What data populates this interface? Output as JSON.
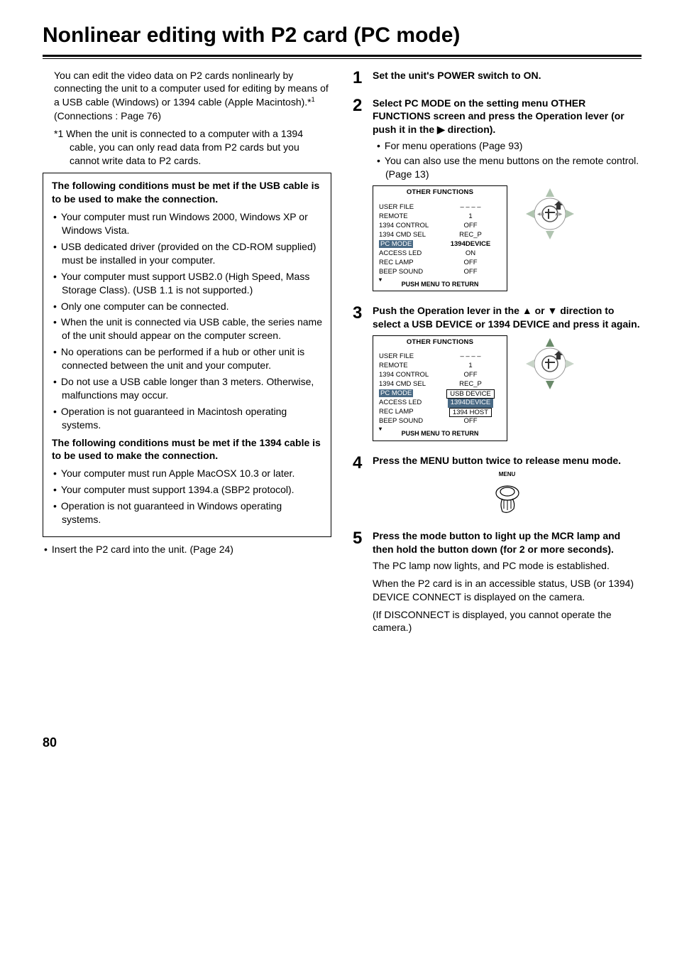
{
  "title": "Nonlinear editing with P2 card (PC mode)",
  "pageNumber": "80",
  "left": {
    "intro": "You can edit the video data on P2 cards nonlinearly by connecting the unit to a computer used for editing by means of a USB cable (Windows) or 1394 cable (Apple Macintosh).*",
    "introSup": "1",
    "introTail": " (Connections : Page 76)",
    "note1": "*1 When the unit is connected to a computer with a 1394 cable, you can only read data from P2 cards but you cannot write data to P2 cards.",
    "usbHead": "The following conditions must be met if the USB cable is to be used to make the connection.",
    "usb": [
      "Your computer must run Windows 2000, Windows XP or Windows Vista.",
      "USB dedicated driver (provided on the CD-ROM supplied) must be installed in your computer.",
      "Your computer must support USB2.0 (High Speed, Mass Storage Class). (USB 1.1 is not supported.)",
      "Only one computer can be connected.",
      "When the unit is connected via USB cable, the series name of the unit should appear on the computer screen.",
      "No operations can be performed if a hub or other unit is connected between the unit and your computer.",
      "Do not use a USB cable longer than 3 meters. Otherwise, malfunctions may occur.",
      "Operation is not guaranteed in Macintosh operating systems."
    ],
    "fwHead": "The following conditions must be met if the 1394 cable is to be used to make the connection.",
    "fw": [
      "Your computer must run Apple MacOSX 10.3 or later.",
      "Your computer must support 1394.a (SBP2 protocol).",
      "Operation is not guaranteed in Windows operating systems."
    ],
    "insert": "Insert the P2 card into the unit. (Page 24)"
  },
  "steps": {
    "s1": {
      "num": "1",
      "head": "Set the unit's POWER switch to ON."
    },
    "s2": {
      "num": "2",
      "head": "Select PC MODE on the setting menu OTHER FUNCTIONS screen and press the Operation lever (or push it in the ▶ direction).",
      "b1": "For menu operations (Page 93)",
      "b2": "You can also use the menu buttons on the remote control. (Page 13)"
    },
    "s3": {
      "num": "3",
      "head": "Push the Operation lever in the ▲ or ▼ direction to select a USB DEVICE or 1394 DEVICE and press it again."
    },
    "s4": {
      "num": "4",
      "head": "Press the MENU button twice to release menu mode.",
      "btnLabel": "MENU"
    },
    "s5": {
      "num": "5",
      "head": "Press the mode button to light up the MCR lamp and then hold the button down (for 2 or more seconds).",
      "p1": "The PC lamp now lights, and PC mode is established.",
      "p2": "When the P2 card is in an accessible status, USB (or 1394) DEVICE CONNECT is displayed on the camera.",
      "p3": "(If DISCONNECT is displayed, you cannot operate the camera.)"
    }
  },
  "menu": {
    "title": "OTHER FUNCTIONS",
    "footer": "PUSH   MENU TO RETURN",
    "rows": [
      {
        "label": "USER FILE",
        "val": "– – – –"
      },
      {
        "label": "REMOTE",
        "val": "1"
      },
      {
        "label": "1394 CONTROL",
        "val": "OFF"
      },
      {
        "label": "1394 CMD SEL",
        "val": "REC_P"
      },
      {
        "label": "PC MODE",
        "val": "1394DEVICE"
      },
      {
        "label": "ACCESS LED",
        "val": "ON"
      },
      {
        "label": "REC LAMP",
        "val": "OFF"
      },
      {
        "label": "BEEP SOUND",
        "val": "OFF"
      }
    ],
    "rows2": [
      {
        "label": "USER FILE",
        "val": "– – – –"
      },
      {
        "label": "REMOTE",
        "val": "1"
      },
      {
        "label": "1394 CONTROL",
        "val": "OFF"
      },
      {
        "label": "1394 CMD SEL",
        "val": "REC_P"
      },
      {
        "label": "PC MODE",
        "val": "USB DEVICE"
      },
      {
        "label": "ACCESS LED",
        "val": "1394DEVICE"
      },
      {
        "label": "REC LAMP",
        "val": "1394 HOST"
      },
      {
        "label": "BEEP SOUND",
        "val": "OFF"
      }
    ]
  }
}
